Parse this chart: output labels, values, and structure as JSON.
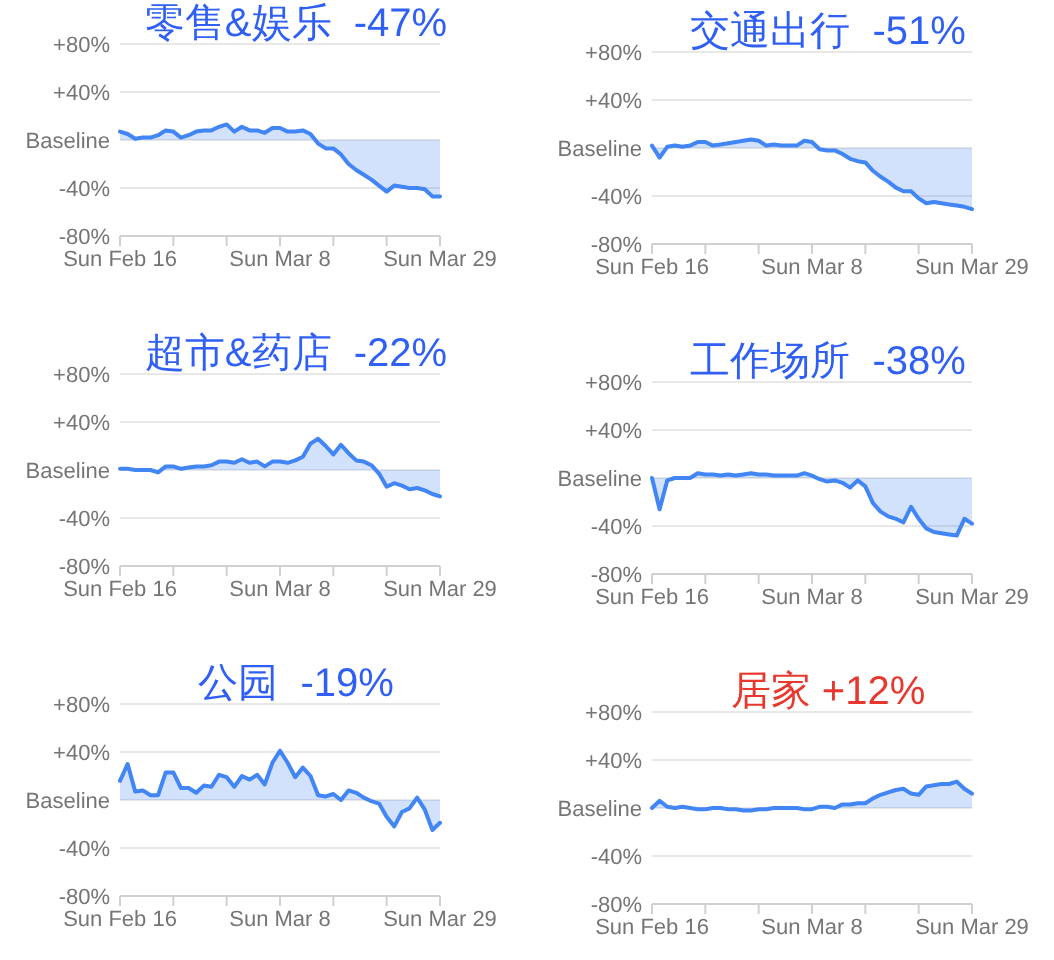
{
  "chart_data": [
    {
      "type": "area",
      "title": "零售&娱乐  -47%",
      "color": "#4285f4",
      "grid": "y",
      "ylim": [
        -80,
        80
      ],
      "yticks": [
        {
          "value": -80,
          "label": "-80%"
        },
        {
          "value": -40,
          "label": "-40%"
        },
        {
          "value": 0,
          "label": "Baseline"
        },
        {
          "value": 40,
          "label": "+40%"
        },
        {
          "value": 80,
          "label": "+80%"
        }
      ],
      "xlim": [
        "--02-16",
        "--03-29"
      ],
      "xticks": [
        {
          "value": "--02-16",
          "label": "Sun Feb 16"
        },
        {
          "value": "--02-23",
          "label": null
        },
        {
          "value": "--03-01",
          "label": null
        },
        {
          "value": "--03-08",
          "label": "Sun Mar 8"
        },
        {
          "value": "--03-15",
          "label": null
        },
        {
          "value": "--03-22",
          "label": null
        },
        {
          "value": "--03-29",
          "label": "Sun Mar 29"
        }
      ],
      "x": [
        "--02-16",
        "--02-17",
        "--02-18",
        "--02-19",
        "--02-20",
        "--02-21",
        "--02-22",
        "--02-23",
        "--02-24",
        "--02-25",
        "--02-26",
        "--02-27",
        "--02-28",
        "--02-29",
        "--03-01",
        "--03-02",
        "--03-03",
        "--03-04",
        "--03-05",
        "--03-06",
        "--03-07",
        "--03-08",
        "--03-09",
        "--03-10",
        "--03-11",
        "--03-12",
        "--03-13",
        "--03-14",
        "--03-15",
        "--03-16",
        "--03-17",
        "--03-18",
        "--03-19",
        "--03-20",
        "--03-21",
        "--03-22",
        "--03-23",
        "--03-24",
        "--03-25",
        "--03-26",
        "--03-27",
        "--03-28",
        "--03-29"
      ],
      "values": [
        7,
        5,
        1,
        2,
        2,
        4,
        8,
        7,
        2,
        4,
        7,
        8,
        8,
        11,
        13,
        7,
        11,
        8,
        8,
        6,
        10,
        10,
        7,
        7,
        8,
        5,
        -3,
        -7,
        -7,
        -12,
        -20,
        -25,
        -29,
        -33,
        -38,
        -43,
        -38,
        -39,
        -40,
        -40,
        -41,
        -47,
        -47
      ]
    },
    {
      "type": "area",
      "title": "交通出行  -51%",
      "color": "#4285f4",
      "grid": "y",
      "ylim": [
        -80,
        80
      ],
      "yticks": [
        {
          "value": -80,
          "label": "-80%"
        },
        {
          "value": -40,
          "label": "-40%"
        },
        {
          "value": 0,
          "label": "Baseline"
        },
        {
          "value": 40,
          "label": "+40%"
        },
        {
          "value": 80,
          "label": "+80%"
        }
      ],
      "xlim": [
        "--02-16",
        "--03-29"
      ],
      "xticks": [
        {
          "value": "--02-16",
          "label": "Sun Feb 16"
        },
        {
          "value": "--02-23",
          "label": null
        },
        {
          "value": "--03-01",
          "label": null
        },
        {
          "value": "--03-08",
          "label": "Sun Mar 8"
        },
        {
          "value": "--03-15",
          "label": null
        },
        {
          "value": "--03-22",
          "label": null
        },
        {
          "value": "--03-29",
          "label": "Sun Mar 29"
        }
      ],
      "x": [
        "--02-16",
        "--02-17",
        "--02-18",
        "--02-19",
        "--02-20",
        "--02-21",
        "--02-22",
        "--02-23",
        "--02-24",
        "--02-25",
        "--02-26",
        "--02-27",
        "--02-28",
        "--02-29",
        "--03-01",
        "--03-02",
        "--03-03",
        "--03-04",
        "--03-05",
        "--03-06",
        "--03-07",
        "--03-08",
        "--03-09",
        "--03-10",
        "--03-11",
        "--03-12",
        "--03-13",
        "--03-14",
        "--03-15",
        "--03-16",
        "--03-17",
        "--03-18",
        "--03-19",
        "--03-20",
        "--03-21",
        "--03-22",
        "--03-23",
        "--03-24",
        "--03-25",
        "--03-26",
        "--03-27",
        "--03-28",
        "--03-29"
      ],
      "values": [
        2,
        -8,
        1,
        2,
        1,
        2,
        5,
        5,
        2,
        3,
        4,
        5,
        6,
        7,
        6,
        2,
        3,
        2,
        2,
        2,
        6,
        5,
        -1,
        -2,
        -2,
        -5,
        -9,
        -11,
        -12,
        -19,
        -24,
        -28,
        -33,
        -36,
        -36,
        -42,
        -46,
        -45,
        -46,
        -47,
        -48,
        -49,
        -51
      ]
    },
    {
      "type": "area",
      "title": "超市&药店  -22%",
      "color": "#4285f4",
      "grid": "y",
      "ylim": [
        -80,
        80
      ],
      "yticks": [
        {
          "value": -80,
          "label": "-80%"
        },
        {
          "value": -40,
          "label": "-40%"
        },
        {
          "value": 0,
          "label": "Baseline"
        },
        {
          "value": 40,
          "label": "+40%"
        },
        {
          "value": 80,
          "label": "+80%"
        }
      ],
      "xlim": [
        "--02-16",
        "--03-29"
      ],
      "xticks": [
        {
          "value": "--02-16",
          "label": "Sun Feb 16"
        },
        {
          "value": "--02-23",
          "label": null
        },
        {
          "value": "--03-01",
          "label": null
        },
        {
          "value": "--03-08",
          "label": "Sun Mar 8"
        },
        {
          "value": "--03-15",
          "label": null
        },
        {
          "value": "--03-22",
          "label": null
        },
        {
          "value": "--03-29",
          "label": "Sun Mar 29"
        }
      ],
      "x": [
        "--02-16",
        "--02-17",
        "--02-18",
        "--02-19",
        "--02-20",
        "--02-21",
        "--02-22",
        "--02-23",
        "--02-24",
        "--02-25",
        "--02-26",
        "--02-27",
        "--02-28",
        "--02-29",
        "--03-01",
        "--03-02",
        "--03-03",
        "--03-04",
        "--03-05",
        "--03-06",
        "--03-07",
        "--03-08",
        "--03-09",
        "--03-10",
        "--03-11",
        "--03-12",
        "--03-13",
        "--03-14",
        "--03-15",
        "--03-16",
        "--03-17",
        "--03-18",
        "--03-19",
        "--03-20",
        "--03-21",
        "--03-22",
        "--03-23",
        "--03-24",
        "--03-25",
        "--03-26",
        "--03-27",
        "--03-28",
        "--03-29"
      ],
      "values": [
        1,
        1,
        0,
        0,
        0,
        -2,
        3,
        3,
        1,
        2,
        3,
        3,
        4,
        7,
        7,
        6,
        9,
        6,
        7,
        3,
        7,
        7,
        6,
        8,
        11,
        22,
        26,
        20,
        13,
        21,
        14,
        8,
        7,
        4,
        -3,
        -14,
        -11,
        -13,
        -16,
        -15,
        -17,
        -20,
        -22
      ]
    },
    {
      "type": "area",
      "title": "工作场所  -38%",
      "color": "#4285f4",
      "grid": "y",
      "ylim": [
        -80,
        80
      ],
      "yticks": [
        {
          "value": -80,
          "label": "-80%"
        },
        {
          "value": -40,
          "label": "-40%"
        },
        {
          "value": 0,
          "label": "Baseline"
        },
        {
          "value": 40,
          "label": "+40%"
        },
        {
          "value": 80,
          "label": "+80%"
        }
      ],
      "xlim": [
        "--02-16",
        "--03-29"
      ],
      "xticks": [
        {
          "value": "--02-16",
          "label": "Sun Feb 16"
        },
        {
          "value": "--02-23",
          "label": null
        },
        {
          "value": "--03-01",
          "label": null
        },
        {
          "value": "--03-08",
          "label": "Sun Mar 8"
        },
        {
          "value": "--03-15",
          "label": null
        },
        {
          "value": "--03-22",
          "label": null
        },
        {
          "value": "--03-29",
          "label": "Sun Mar 29"
        }
      ],
      "x": [
        "--02-16",
        "--02-17",
        "--02-18",
        "--02-19",
        "--02-20",
        "--02-21",
        "--02-22",
        "--02-23",
        "--02-24",
        "--02-25",
        "--02-26",
        "--02-27",
        "--02-28",
        "--02-29",
        "--03-01",
        "--03-02",
        "--03-03",
        "--03-04",
        "--03-05",
        "--03-06",
        "--03-07",
        "--03-08",
        "--03-09",
        "--03-10",
        "--03-11",
        "--03-12",
        "--03-13",
        "--03-14",
        "--03-15",
        "--03-16",
        "--03-17",
        "--03-18",
        "--03-19",
        "--03-20",
        "--03-21",
        "--03-22",
        "--03-23",
        "--03-24",
        "--03-25",
        "--03-26",
        "--03-27",
        "--03-28",
        "--03-29"
      ],
      "values": [
        0,
        -26,
        -2,
        0,
        0,
        0,
        4,
        3,
        3,
        2,
        3,
        2,
        3,
        4,
        3,
        3,
        2,
        2,
        2,
        2,
        4,
        2,
        -1,
        -3,
        -2,
        -4,
        -8,
        -2,
        -7,
        -21,
        -28,
        -32,
        -34,
        -37,
        -24,
        -34,
        -42,
        -45,
        -46,
        -47,
        -48,
        -34,
        -38
      ]
    },
    {
      "type": "area",
      "title": "公园  -19%",
      "color": "#4285f4",
      "grid": "y",
      "ylim": [
        -80,
        80
      ],
      "yticks": [
        {
          "value": -80,
          "label": "-80%"
        },
        {
          "value": -40,
          "label": "-40%"
        },
        {
          "value": 0,
          "label": "Baseline"
        },
        {
          "value": 40,
          "label": "+40%"
        },
        {
          "value": 80,
          "label": "+80%"
        }
      ],
      "xlim": [
        "--02-16",
        "--03-29"
      ],
      "xticks": [
        {
          "value": "--02-16",
          "label": "Sun Feb 16"
        },
        {
          "value": "--02-23",
          "label": null
        },
        {
          "value": "--03-01",
          "label": null
        },
        {
          "value": "--03-08",
          "label": "Sun Mar 8"
        },
        {
          "value": "--03-15",
          "label": null
        },
        {
          "value": "--03-22",
          "label": null
        },
        {
          "value": "--03-29",
          "label": "Sun Mar 29"
        }
      ],
      "x": [
        "--02-16",
        "--02-17",
        "--02-18",
        "--02-19",
        "--02-20",
        "--02-21",
        "--02-22",
        "--02-23",
        "--02-24",
        "--02-25",
        "--02-26",
        "--02-27",
        "--02-28",
        "--02-29",
        "--03-01",
        "--03-02",
        "--03-03",
        "--03-04",
        "--03-05",
        "--03-06",
        "--03-07",
        "--03-08",
        "--03-09",
        "--03-10",
        "--03-11",
        "--03-12",
        "--03-13",
        "--03-14",
        "--03-15",
        "--03-16",
        "--03-17",
        "--03-18",
        "--03-19",
        "--03-20",
        "--03-21",
        "--03-22",
        "--03-23",
        "--03-24",
        "--03-25",
        "--03-26",
        "--03-27",
        "--03-28",
        "--03-29"
      ],
      "values": [
        16,
        30,
        7,
        8,
        4,
        4,
        23,
        23,
        10,
        10,
        6,
        12,
        11,
        21,
        19,
        11,
        20,
        17,
        21,
        13,
        31,
        41,
        31,
        19,
        27,
        20,
        4,
        3,
        5,
        0,
        8,
        6,
        2,
        -1,
        -3,
        -14,
        -22,
        -10,
        -7,
        2,
        -8,
        -25,
        -19
      ]
    },
    {
      "type": "area",
      "title": "居家 +12%",
      "color": "#4285f4",
      "grid": "y",
      "ylim": [
        -80,
        80
      ],
      "yticks": [
        {
          "value": -80,
          "label": "-80%"
        },
        {
          "value": -40,
          "label": "-40%"
        },
        {
          "value": 0,
          "label": "Baseline"
        },
        {
          "value": 40,
          "label": "+40%"
        },
        {
          "value": 80,
          "label": "+80%"
        }
      ],
      "xlim": [
        "--02-16",
        "--03-29"
      ],
      "xticks": [
        {
          "value": "--02-16",
          "label": "Sun Feb 16"
        },
        {
          "value": "--02-23",
          "label": null
        },
        {
          "value": "--03-01",
          "label": null
        },
        {
          "value": "--03-08",
          "label": "Sun Mar 8"
        },
        {
          "value": "--03-15",
          "label": null
        },
        {
          "value": "--03-22",
          "label": null
        },
        {
          "value": "--03-29",
          "label": "Sun Mar 29"
        }
      ],
      "x": [
        "--02-16",
        "--02-17",
        "--02-18",
        "--02-19",
        "--02-20",
        "--02-21",
        "--02-22",
        "--02-23",
        "--02-24",
        "--02-25",
        "--02-26",
        "--02-27",
        "--02-28",
        "--02-29",
        "--03-01",
        "--03-02",
        "--03-03",
        "--03-04",
        "--03-05",
        "--03-06",
        "--03-07",
        "--03-08",
        "--03-09",
        "--03-10",
        "--03-11",
        "--03-12",
        "--03-13",
        "--03-14",
        "--03-15",
        "--03-16",
        "--03-17",
        "--03-18",
        "--03-19",
        "--03-20",
        "--03-21",
        "--03-22",
        "--03-23",
        "--03-24",
        "--03-25",
        "--03-26",
        "--03-27",
        "--03-28",
        "--03-29"
      ],
      "values": [
        0,
        6,
        1,
        0,
        1,
        0,
        -1,
        -1,
        0,
        0,
        -1,
        -1,
        -2,
        -2,
        -1,
        -1,
        0,
        0,
        0,
        0,
        -1,
        -1,
        1,
        1,
        0,
        3,
        3,
        4,
        4,
        8,
        11,
        13,
        15,
        16,
        12,
        11,
        18,
        19,
        20,
        20,
        22,
        16,
        12
      ]
    }
  ]
}
